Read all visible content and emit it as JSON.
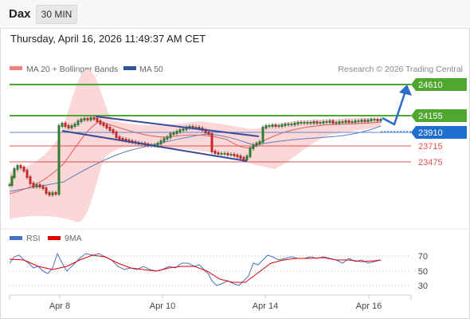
{
  "header": {
    "symbol": "Dax",
    "timeframe": "30 MIN"
  },
  "datetime": "Thursday, April 16, 2026 11:49:37 AM CET",
  "legend": [
    {
      "label": "MA 20 + Bollinger Bands",
      "color": "#f08080"
    },
    {
      "label": "MA 50",
      "color": "#2f5597"
    }
  ],
  "watermark": "Research © 2026 Trading Central",
  "rsi_legend": [
    {
      "label": "RSI",
      "color": "#4472c4"
    },
    {
      "label": "9MA",
      "color": "#e00000"
    }
  ],
  "chart_data": [
    {
      "type": "line",
      "name": "price",
      "x": [
        "Apr 8",
        "Apr 10",
        "Apr 14",
        "Apr 16"
      ],
      "levels": [
        {
          "value": 24610,
          "label": "24610",
          "style": "resistance",
          "color": "#4ea72e"
        },
        {
          "value": 24155,
          "label": "24155",
          "style": "pivot",
          "color": "#4ea72e"
        },
        {
          "value": 23910,
          "label": "23910",
          "style": "last",
          "color": "#1f6fd1"
        },
        {
          "value": 23715,
          "label": "23715",
          "style": "support",
          "color": "#e05050"
        },
        {
          "value": 23475,
          "label": "23475",
          "style": "support",
          "color": "#e05050"
        }
      ]
    },
    {
      "type": "line",
      "name": "RSI",
      "x": [
        "Apr 8",
        "Apr 10",
        "Apr 14",
        "Apr 16"
      ],
      "yticks": [
        70,
        50,
        30
      ],
      "ylim": [
        20,
        80
      ]
    }
  ]
}
